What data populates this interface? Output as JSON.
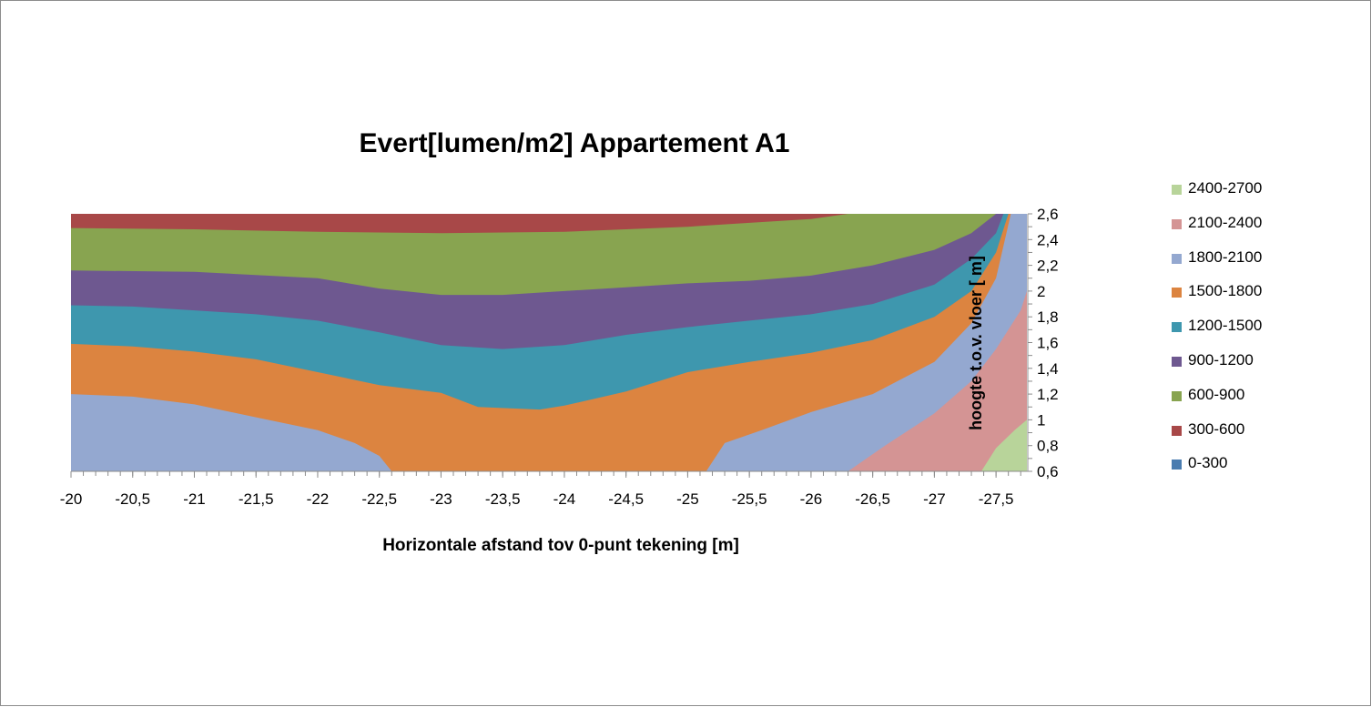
{
  "chart_data": {
    "type": "area",
    "title": "Evert[lumen/m2] Appartement A1",
    "xlabel": "Horizontale afstand tov 0-punt tekening [m]",
    "ylabel": "hoogte t.o.v. vloer [ m]",
    "xlim": [
      -20,
      -27.75
    ],
    "ylim": [
      0.6,
      2.6
    ],
    "x_ticks": [
      "-20",
      "-20,5",
      "-21",
      "-21,5",
      "-22",
      "-22,5",
      "-23",
      "-23,5",
      "-24",
      "-24,5",
      "-25",
      "-25,5",
      "-26",
      "-26,5",
      "-27",
      "-27,5"
    ],
    "x_tick_values": [
      -20,
      -20.5,
      -21,
      -21.5,
      -22,
      -22.5,
      -23,
      -23.5,
      -24,
      -24.5,
      -25,
      -25.5,
      -26,
      -26.5,
      -27,
      -27.5
    ],
    "y_ticks": [
      "0,6",
      "0,8",
      "1",
      "1,2",
      "1,4",
      "1,6",
      "1,8",
      "2",
      "2,2",
      "2,4",
      "2,6"
    ],
    "y_tick_values": [
      0.6,
      0.8,
      1.0,
      1.2,
      1.4,
      1.6,
      1.8,
      2.0,
      2.2,
      2.4,
      2.6
    ],
    "legend_position": "right",
    "legend": [
      {
        "name": "2400-2700",
        "color": "#b8d49a"
      },
      {
        "name": "2100-2400",
        "color": "#d49494"
      },
      {
        "name": "1800-2100",
        "color": "#94a8d0"
      },
      {
        "name": "1500-1800",
        "color": "#dc8440"
      },
      {
        "name": "1200-1500",
        "color": "#3e97ae"
      },
      {
        "name": "900-1200",
        "color": "#6e5890"
      },
      {
        "name": "600-900",
        "color": "#88a450"
      },
      {
        "name": "300-600",
        "color": "#a84848"
      },
      {
        "name": "0-300",
        "color": "#4a7cb0"
      }
    ],
    "band_colors": {
      "300-600": "#a84848",
      "600-900": "#88a450",
      "900-1200": "#6e5890",
      "1200-1500": "#3e97ae",
      "1500-1800": "#dc8440",
      "1800-2100": "#94a8d0",
      "2100-2400": "#d49494",
      "2400-2700": "#b8d49a"
    },
    "contours": [
      {
        "level": "600-900",
        "points": [
          [
            -20,
            2.49
          ],
          [
            -21,
            2.48
          ],
          [
            -22,
            2.46
          ],
          [
            -23,
            2.45
          ],
          [
            -24,
            2.46
          ],
          [
            -25,
            2.5
          ],
          [
            -25.5,
            2.53
          ],
          [
            -26,
            2.56
          ],
          [
            -26.3,
            2.6
          ]
        ]
      },
      {
        "level": "900-1200",
        "points": [
          [
            -20,
            2.16
          ],
          [
            -21,
            2.15
          ],
          [
            -22,
            2.1
          ],
          [
            -22.5,
            2.02
          ],
          [
            -23,
            1.97
          ],
          [
            -23.5,
            1.97
          ],
          [
            -24,
            2.0
          ],
          [
            -24.5,
            2.03
          ],
          [
            -25,
            2.06
          ],
          [
            -25.5,
            2.08
          ],
          [
            -26,
            2.12
          ],
          [
            -26.5,
            2.2
          ],
          [
            -27,
            2.32
          ],
          [
            -27.3,
            2.45
          ],
          [
            -27.5,
            2.6
          ]
        ]
      },
      {
        "level": "1200-1500",
        "points": [
          [
            -20,
            1.89
          ],
          [
            -20.5,
            1.88
          ],
          [
            -21,
            1.85
          ],
          [
            -21.5,
            1.82
          ],
          [
            -22,
            1.77
          ],
          [
            -22.5,
            1.68
          ],
          [
            -23,
            1.58
          ],
          [
            -23.5,
            1.55
          ],
          [
            -24,
            1.58
          ],
          [
            -24.5,
            1.66
          ],
          [
            -25,
            1.72
          ],
          [
            -25.5,
            1.77
          ],
          [
            -26,
            1.82
          ],
          [
            -26.5,
            1.9
          ],
          [
            -27,
            2.05
          ],
          [
            -27.3,
            2.25
          ],
          [
            -27.5,
            2.45
          ],
          [
            -27.56,
            2.6
          ]
        ]
      },
      {
        "level": "1500-1800",
        "points": [
          [
            -20,
            1.59
          ],
          [
            -20.5,
            1.57
          ],
          [
            -21,
            1.53
          ],
          [
            -21.5,
            1.47
          ],
          [
            -22,
            1.37
          ],
          [
            -22.5,
            1.27
          ],
          [
            -23,
            1.21
          ],
          [
            -23.3,
            1.1
          ],
          [
            -23.8,
            1.08
          ],
          [
            -24,
            1.11
          ],
          [
            -24.5,
            1.22
          ],
          [
            -25,
            1.37
          ],
          [
            -25.5,
            1.45
          ],
          [
            -26,
            1.52
          ],
          [
            -26.5,
            1.62
          ],
          [
            -27,
            1.8
          ],
          [
            -27.3,
            2.0
          ],
          [
            -27.5,
            2.3
          ],
          [
            -27.6,
            2.6
          ]
        ]
      },
      {
        "level": "1800-2100",
        "points": [
          [
            -20,
            1.2
          ],
          [
            -20.5,
            1.18
          ],
          [
            -21,
            1.12
          ],
          [
            -21.5,
            1.02
          ],
          [
            -22,
            0.92
          ],
          [
            -22.3,
            0.82
          ],
          [
            -22.5,
            0.72
          ],
          [
            -22.6,
            0.6
          ],
          [
            -25.15,
            0.6
          ],
          [
            -25.3,
            0.82
          ],
          [
            -25.6,
            0.92
          ],
          [
            -26,
            1.06
          ],
          [
            -26.5,
            1.2
          ],
          [
            -27,
            1.45
          ],
          [
            -27.3,
            1.75
          ],
          [
            -27.5,
            2.1
          ],
          [
            -27.62,
            2.6
          ]
        ]
      },
      {
        "level": "2100-2400",
        "points": [
          [
            -26.3,
            0.6
          ],
          [
            -26.6,
            0.8
          ],
          [
            -27,
            1.05
          ],
          [
            -27.3,
            1.3
          ],
          [
            -27.5,
            1.55
          ],
          [
            -27.7,
            1.85
          ],
          [
            -27.75,
            2.0
          ]
        ]
      },
      {
        "level": "2400-2700",
        "points": [
          [
            -27.38,
            0.6
          ],
          [
            -27.5,
            0.78
          ],
          [
            -27.65,
            0.92
          ],
          [
            -27.75,
            1.0
          ]
        ]
      }
    ]
  }
}
